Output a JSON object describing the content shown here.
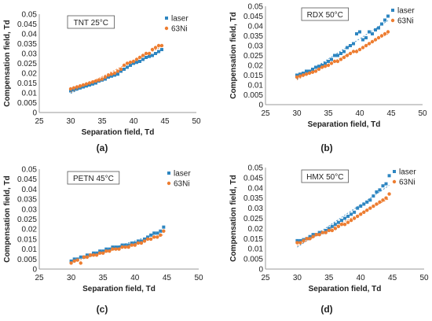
{
  "panel_labels": [
    "(a)",
    "(b)",
    "(c)",
    "(d)"
  ],
  "colors": {
    "laser": "#2E86C1",
    "ni": "#ED7D31",
    "axis": "#999999",
    "text": "#222222"
  },
  "chart_data": [
    {
      "type": "scatter",
      "title": "TNT 25°C",
      "xlabel": "Separation field, Td",
      "ylabel": "Compensation field, Td",
      "xlim": [
        25,
        50
      ],
      "ylim": [
        0,
        0.05
      ],
      "xticks": [
        "25",
        "30",
        "35",
        "40",
        "45",
        "50"
      ],
      "yticks": [
        "0",
        "0.005",
        "0.01",
        "0.015",
        "0.02",
        "0.025",
        "0.03",
        "0.035",
        "0.04",
        "0.045",
        "0.05"
      ],
      "legend": "top-right",
      "series": [
        {
          "name": "laser",
          "marker": "square",
          "x": [
            30,
            30.5,
            31,
            31.5,
            32,
            32.5,
            33,
            33.5,
            34,
            34.5,
            35,
            35.5,
            36,
            36.5,
            37,
            37.5,
            38,
            38.5,
            39,
            39.5,
            40,
            40.5,
            41,
            41.5,
            42,
            42.5,
            43,
            43.5,
            44,
            44.5
          ],
          "y": [
            0.011,
            0.0115,
            0.012,
            0.0125,
            0.013,
            0.0135,
            0.014,
            0.0145,
            0.015,
            0.016,
            0.0165,
            0.017,
            0.018,
            0.0185,
            0.019,
            0.0195,
            0.021,
            0.022,
            0.023,
            0.024,
            0.025,
            0.0255,
            0.026,
            0.027,
            0.028,
            0.0285,
            0.029,
            0.03,
            0.031,
            0.032
          ]
        },
        {
          "name": "63Ni",
          "marker": "circle",
          "x": [
            30,
            30.5,
            31,
            31.5,
            32,
            32.5,
            33,
            33.5,
            34,
            34.5,
            35,
            35.5,
            36,
            36.5,
            37,
            37.5,
            38,
            38.5,
            39,
            39.5,
            40,
            40.5,
            41,
            41.5,
            42,
            42.5,
            43,
            43.5,
            44,
            44.5
          ],
          "y": [
            0.012,
            0.0125,
            0.013,
            0.0135,
            0.014,
            0.0145,
            0.015,
            0.0155,
            0.016,
            0.0165,
            0.017,
            0.018,
            0.019,
            0.0195,
            0.02,
            0.021,
            0.022,
            0.024,
            0.025,
            0.0255,
            0.026,
            0.027,
            0.028,
            0.029,
            0.03,
            0.03,
            0.032,
            0.033,
            0.034,
            0.034
          ]
        }
      ]
    },
    {
      "type": "scatter",
      "title": "RDX 50°C",
      "xlabel": "Separation field, Td",
      "ylabel": "Compensation field, Td",
      "xlim": [
        25,
        50
      ],
      "ylim": [
        0,
        0.05
      ],
      "xticks": [
        "25",
        "30",
        "35",
        "40",
        "45",
        "50"
      ],
      "yticks": [
        "0",
        "0.005",
        "0.01",
        "0.015",
        "0.02",
        "0.025",
        "0.03",
        "0.035",
        "0.04",
        "0.045",
        "0.05"
      ],
      "legend": "top-right",
      "series": [
        {
          "name": "laser",
          "marker": "square",
          "x": [
            30,
            30.5,
            31,
            31.5,
            32,
            32.5,
            33,
            33.5,
            34,
            34.5,
            35,
            35.5,
            36,
            36.5,
            37,
            37.5,
            38,
            38.5,
            39,
            39.5,
            40,
            40.5,
            41,
            41.5,
            42,
            42.5,
            43,
            43.5,
            44,
            44.5
          ],
          "y": [
            0.015,
            0.0155,
            0.016,
            0.017,
            0.017,
            0.018,
            0.019,
            0.0195,
            0.02,
            0.021,
            0.022,
            0.023,
            0.025,
            0.025,
            0.026,
            0.027,
            0.029,
            0.03,
            0.031,
            0.036,
            0.037,
            0.033,
            0.034,
            0.037,
            0.036,
            0.038,
            0.039,
            0.041,
            0.043,
            0.045
          ]
        },
        {
          "name": "63Ni",
          "marker": "circle",
          "x": [
            30,
            30.5,
            31,
            31.5,
            32,
            32.5,
            33,
            33.5,
            34,
            34.5,
            35,
            35.5,
            36,
            36.5,
            37,
            37.5,
            38,
            38.5,
            39,
            39.5,
            40,
            40.5,
            41,
            41.5,
            42,
            42.5,
            43,
            43.5,
            44,
            44.5
          ],
          "y": [
            0.014,
            0.0145,
            0.015,
            0.0155,
            0.016,
            0.0165,
            0.017,
            0.018,
            0.019,
            0.0195,
            0.02,
            0.021,
            0.022,
            0.022,
            0.023,
            0.024,
            0.025,
            0.026,
            0.027,
            0.027,
            0.028,
            0.029,
            0.03,
            0.031,
            0.032,
            0.033,
            0.034,
            0.035,
            0.036,
            0.037
          ]
        }
      ]
    },
    {
      "type": "scatter",
      "title": "PETN 45°C",
      "xlabel": "Separation field, Td",
      "ylabel": "Compensation field, Td",
      "xlim": [
        25,
        50
      ],
      "ylim": [
        0,
        0.05
      ],
      "xticks": [
        "25",
        "30",
        "35",
        "40",
        "45",
        "50"
      ],
      "yticks": [
        "0",
        "0.005",
        "0.01",
        "0.015",
        "0.02",
        "0.025",
        "0.03",
        "0.035",
        "0.04",
        "0.045",
        "0.05"
      ],
      "legend": "top-right",
      "series": [
        {
          "name": "laser",
          "marker": "square",
          "x": [
            30,
            30.5,
            31,
            31.5,
            32,
            32.5,
            33,
            33.5,
            34,
            34.5,
            35,
            35.5,
            36,
            36.5,
            37,
            37.5,
            38,
            38.5,
            39,
            39.5,
            40,
            40.5,
            41,
            41.5,
            42,
            42.5,
            43,
            43.5,
            44,
            44.5
          ],
          "y": [
            0.004,
            0.005,
            0.005,
            0.006,
            0.006,
            0.007,
            0.007,
            0.008,
            0.008,
            0.009,
            0.009,
            0.01,
            0.01,
            0.011,
            0.011,
            0.011,
            0.012,
            0.012,
            0.012,
            0.013,
            0.013,
            0.014,
            0.014,
            0.015,
            0.016,
            0.017,
            0.018,
            0.018,
            0.019,
            0.021
          ]
        },
        {
          "name": "63Ni",
          "marker": "circle",
          "x": [
            30,
            30.5,
            31,
            31.5,
            32,
            32.5,
            33,
            33.5,
            34,
            34.5,
            35,
            35.5,
            36,
            36.5,
            37,
            37.5,
            38,
            38.5,
            39,
            39.5,
            40,
            40.5,
            41,
            41.5,
            42,
            42.5,
            43,
            43.5,
            44,
            44.5
          ],
          "y": [
            0.003,
            0.004,
            0.0045,
            0.003,
            0.006,
            0.006,
            0.007,
            0.007,
            0.007,
            0.008,
            0.008,
            0.009,
            0.009,
            0.01,
            0.01,
            0.01,
            0.011,
            0.011,
            0.011,
            0.012,
            0.012,
            0.013,
            0.013,
            0.014,
            0.015,
            0.015,
            0.016,
            0.016,
            0.017,
            0.019
          ]
        }
      ]
    },
    {
      "type": "scatter",
      "title": "HMX 50°C",
      "xlabel": "Separation field, Td",
      "ylabel": "Compensation field, Td",
      "xlim": [
        25,
        50
      ],
      "ylim": [
        0,
        0.05
      ],
      "xticks": [
        "25",
        "30",
        "35",
        "40",
        "45",
        "50"
      ],
      "yticks": [
        "0",
        "0.005",
        "0.01",
        "0.015",
        "0.02",
        "0.025",
        "0.03",
        "0.035",
        "0.04",
        "0.045",
        "0.05"
      ],
      "legend": "top-right",
      "series": [
        {
          "name": "laser",
          "marker": "square",
          "x": [
            30,
            30.5,
            31,
            31.5,
            32,
            32.5,
            33,
            33.5,
            34,
            34.5,
            35,
            35.5,
            36,
            36.5,
            37,
            37.5,
            38,
            38.5,
            39,
            39.5,
            40,
            40.5,
            41,
            41.5,
            42,
            42.5,
            43,
            43.5,
            44,
            44.5
          ],
          "y": [
            0.014,
            0.014,
            0.0145,
            0.015,
            0.016,
            0.017,
            0.017,
            0.018,
            0.018,
            0.019,
            0.02,
            0.021,
            0.022,
            0.023,
            0.024,
            0.025,
            0.026,
            0.027,
            0.028,
            0.03,
            0.031,
            0.032,
            0.033,
            0.034,
            0.036,
            0.038,
            0.039,
            0.041,
            0.042,
            0.046
          ]
        },
        {
          "name": "63Ni",
          "marker": "circle",
          "x": [
            30,
            30.5,
            31,
            31.5,
            32,
            32.5,
            33,
            33.5,
            34,
            34.5,
            35,
            35.5,
            36,
            36.5,
            37,
            37.5,
            38,
            38.5,
            39,
            39.5,
            40,
            40.5,
            41,
            41.5,
            42,
            42.5,
            43,
            43.5,
            44,
            44.5
          ],
          "y": [
            0.013,
            0.013,
            0.014,
            0.015,
            0.015,
            0.016,
            0.017,
            0.017,
            0.018,
            0.018,
            0.019,
            0.019,
            0.02,
            0.021,
            0.022,
            0.022,
            0.023,
            0.024,
            0.025,
            0.026,
            0.027,
            0.028,
            0.029,
            0.03,
            0.031,
            0.032,
            0.033,
            0.034,
            0.035,
            0.037
          ]
        }
      ]
    }
  ]
}
